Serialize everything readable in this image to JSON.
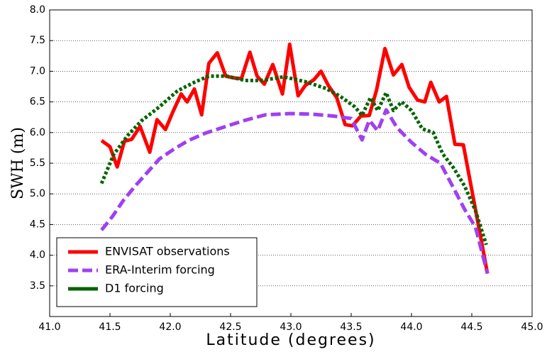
{
  "chart_data": {
    "type": "line",
    "x_label": "Latitude (degrees)",
    "y_label": "SWH (m)",
    "xlim": [
      41.0,
      45.0
    ],
    "ylim": [
      3.0,
      8.0
    ],
    "xticks": [
      {
        "value": 41,
        "label": "41.0"
      },
      41.5,
      {
        "value": 42,
        "label": "42.0"
      },
      42.5,
      {
        "value": 43,
        "label": "43.0"
      },
      43.5,
      {
        "value": 44,
        "label": "44.0"
      },
      44.5,
      {
        "value": 45,
        "label": "45.0"
      }
    ],
    "yticks": [
      3.5,
      {
        "value": 4,
        "label": "4.0"
      },
      4.5,
      {
        "value": 5,
        "label": "5.0"
      },
      5.5,
      {
        "value": 6,
        "label": "6.0"
      },
      6.5,
      {
        "value": 7,
        "label": "7.0"
      },
      7.5,
      {
        "value": 8,
        "label": "8.0"
      }
    ],
    "grid": true,
    "legend": "lower left",
    "series": [
      {
        "name": "ENVISAT observations",
        "color": "#ff0000",
        "style": "solid",
        "x": [
          41.43,
          41.5,
          41.56,
          41.62,
          41.68,
          41.75,
          41.83,
          41.89,
          41.96,
          42.02,
          42.09,
          42.14,
          42.2,
          42.26,
          42.32,
          42.39,
          42.46,
          42.53,
          42.59,
          42.66,
          42.72,
          42.78,
          42.85,
          42.93,
          42.99,
          43.06,
          43.12,
          43.19,
          43.25,
          43.31,
          43.38,
          43.45,
          43.51,
          43.58,
          43.65,
          43.71,
          43.78,
          43.85,
          43.92,
          43.98,
          44.05,
          44.11,
          44.16,
          44.23,
          44.29,
          44.36,
          44.43,
          44.63
        ],
        "values": [
          5.87,
          5.77,
          5.44,
          5.86,
          5.89,
          6.1,
          5.68,
          6.21,
          6.05,
          6.33,
          6.63,
          6.5,
          6.71,
          6.29,
          7.13,
          7.3,
          6.92,
          6.89,
          6.88,
          7.31,
          6.92,
          6.79,
          7.11,
          6.63,
          7.44,
          6.6,
          6.77,
          6.86,
          7.0,
          6.77,
          6.57,
          6.13,
          6.11,
          6.27,
          6.28,
          6.69,
          7.37,
          6.94,
          7.11,
          6.74,
          6.53,
          6.5,
          6.82,
          6.5,
          6.59,
          5.81,
          5.8,
          3.7
        ]
      },
      {
        "name": "ERA-Interim forcing",
        "color": "#a040f0",
        "style": "dashed",
        "x": [
          41.43,
          41.52,
          41.61,
          41.71,
          41.81,
          41.91,
          42.03,
          42.15,
          42.29,
          42.46,
          42.62,
          42.79,
          43.0,
          43.18,
          43.35,
          43.5,
          43.59,
          43.65,
          43.72,
          43.79,
          43.88,
          44.0,
          44.12,
          44.24,
          44.35,
          44.44,
          44.53,
          44.63
        ],
        "values": [
          4.41,
          4.63,
          4.89,
          5.13,
          5.35,
          5.57,
          5.73,
          5.87,
          5.99,
          6.1,
          6.2,
          6.29,
          6.31,
          6.3,
          6.27,
          6.23,
          5.88,
          6.2,
          6.03,
          6.37,
          6.08,
          5.84,
          5.64,
          5.5,
          5.09,
          4.75,
          4.46,
          3.7
        ]
      },
      {
        "name": "D1 forcing",
        "color": "#006400",
        "style": "dotted",
        "x": [
          41.43,
          41.53,
          41.65,
          41.76,
          41.91,
          42.06,
          42.21,
          42.32,
          42.47,
          42.62,
          42.76,
          42.94,
          43.12,
          43.29,
          43.41,
          43.53,
          43.59,
          43.66,
          43.72,
          43.79,
          43.85,
          43.92,
          44.0,
          44.09,
          44.18,
          44.26,
          44.35,
          44.44,
          44.53,
          44.62
        ],
        "values": [
          5.17,
          5.64,
          5.96,
          6.19,
          6.42,
          6.68,
          6.83,
          6.92,
          6.92,
          6.85,
          6.85,
          6.91,
          6.83,
          6.72,
          6.59,
          6.42,
          6.28,
          6.57,
          6.36,
          6.65,
          6.36,
          6.5,
          6.36,
          6.06,
          6.0,
          5.65,
          5.42,
          5.13,
          4.73,
          4.17
        ]
      }
    ]
  }
}
